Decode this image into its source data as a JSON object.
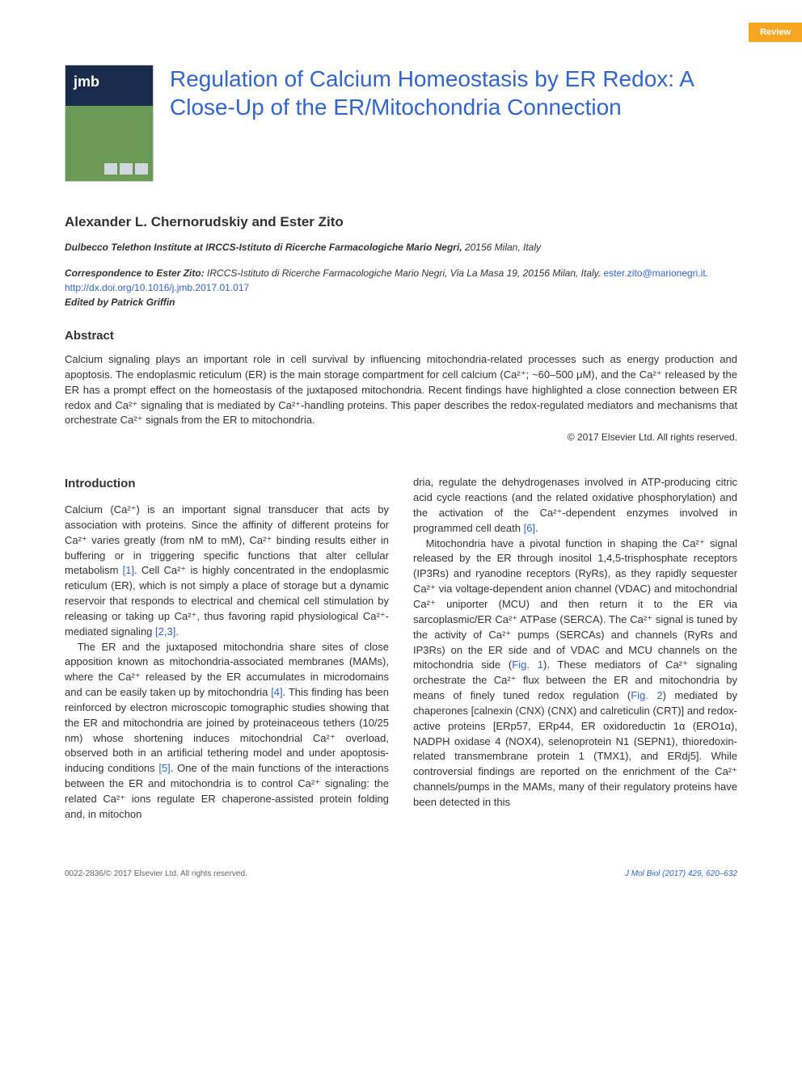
{
  "badge": {
    "label": "Review",
    "bg": "#f5a623",
    "fg": "#ffffff"
  },
  "journal_logo_text": "jmb",
  "title": "Regulation of Calcium Homeostasis by ER Redox: A Close-Up of the ER/Mitochondria Connection",
  "authors": "Alexander L. Chernorudskiy and Ester Zito",
  "affiliation_bold": "Dulbecco Telethon Institute at IRCCS-Istituto di Ricerche Farmacologiche Mario Negri,",
  "affiliation_rest": " 20156 Milan, Italy",
  "correspondence": {
    "label": "Correspondence to Ester Zito:",
    "address": " IRCCS-Istituto di Ricerche Farmacologiche Mario Negri, Via La Masa 19, 20156 Milan, Italy. ",
    "email": "ester.zito@marionegri.it",
    "doi": "http://dx.doi.org/10.1016/j.jmb.2017.01.017",
    "edited_label": "Edited by Patrick Griffin"
  },
  "abstract": {
    "heading": "Abstract",
    "text": "Calcium signaling plays an important role in cell survival by influencing mitochondria-related processes such as energy production and apoptosis. The endoplasmic reticulum (ER) is the main storage compartment for cell calcium (Ca²⁺; ~60–500 μM), and the Ca²⁺ released by the ER has a prompt effect on the homeostasis of the juxtaposed mitochondria. Recent findings have highlighted a close connection between ER redox and Ca²⁺ signaling that is mediated by Ca²⁺-handling proteins. This paper describes the redox-regulated mediators and mechanisms that orchestrate Ca²⁺ signals from the ER to mitochondria.",
    "copyright": "© 2017 Elsevier Ltd. All rights reserved."
  },
  "introduction": {
    "heading": "Introduction",
    "p1": "Calcium (Ca²⁺) is an important signal transducer that acts by association with proteins. Since the affinity of different proteins for Ca²⁺ varies greatly (from nM to mM), Ca²⁺ binding results either in buffering or in triggering specific functions that alter cellular metabolism ",
    "p1_ref": "[1]",
    "p1b": ". Cell Ca²⁺ is highly concentrated in the endoplasmic reticulum (ER), which is not simply a place of storage but a dynamic reservoir that responds to electrical and chemical cell stimulation by releasing or taking up Ca²⁺, thus favoring rapid physiological Ca²⁺-mediated signaling ",
    "p1_ref2": "[2,3]",
    "p1c": ".",
    "p2": "The ER and the juxtaposed mitochondria share sites of close apposition known as mitochondria-associated membranes (MAMs), where the Ca²⁺ released by the ER accumulates in microdomains and can be easily taken up by mitochondria ",
    "p2_ref": "[4]",
    "p2b": ". This finding has been reinforced by electron microscopic tomographic studies showing that the ER and mitochondria are joined by proteinaceous tethers (10/25 nm) whose shortening induces mitochondrial Ca²⁺ overload, observed both in an artificial tethering model and under apoptosis-inducing conditions ",
    "p2_ref2": "[5]",
    "p2c": ". One of the main functions of the interactions between the ER and mitochondria is to control Ca²⁺ signaling: the related Ca²⁺ ions regulate ER chaperone-assisted protein folding and, in mitochon",
    "p3a": "dria, regulate the dehydrogenases involved in ATP-producing citric acid cycle reactions (and the related oxidative phosphorylation) and the activation of the Ca²⁺-dependent enzymes involved in programmed cell death ",
    "p3_ref": "[6]",
    "p3b": ".",
    "p4": "Mitochondria have a pivotal function in shaping the Ca²⁺ signal released by the ER through inositol 1,4,5-trisphosphate receptors (IP3Rs) and ryanodine receptors (RyRs), as they rapidly sequester Ca²⁺ via voltage-dependent anion channel (VDAC) and mitochondrial Ca²⁺ uniporter (MCU) and then return it to the ER via sarcoplasmic/ER Ca²⁺ ATPase (SERCA). The Ca²⁺ signal is tuned by the activity of Ca²⁺ pumps (SERCAs) and channels (RyRs and IP3Rs) on the ER side and of VDAC and MCU channels on the mitochondria side (",
    "p4_fig1": "Fig. 1",
    "p4b": "). These mediators of Ca²⁺ signaling orchestrate the Ca²⁺ flux between the ER and mitochondria by means of finely tuned redox regulation (",
    "p4_fig2": "Fig. 2",
    "p4c": ") mediated by chaperones [calnexin (CNX) (CNX) and calreticulin (CRT)] and redox-active proteins [ERp57, ERp44, ER oxidoreductin 1α (ERO1α), NADPH oxidase 4 (NOX4), selenoprotein N1 (SEPN1), thioredoxin-related transmembrane protein 1 (TMX1), and ERdj5]. While controversial findings are reported on the enrichment of the Ca²⁺ channels/pumps in the MAMs, many of their regulatory proteins have been detected in this"
  },
  "footer": {
    "left": "0022-2836/© 2017 Elsevier Ltd. All rights reserved.",
    "right": "J Mol Biol (2017) 429, 620–632"
  },
  "colors": {
    "link": "#3366cc",
    "badge_bg": "#f5a623",
    "text": "#333333",
    "footer": "#666666"
  }
}
